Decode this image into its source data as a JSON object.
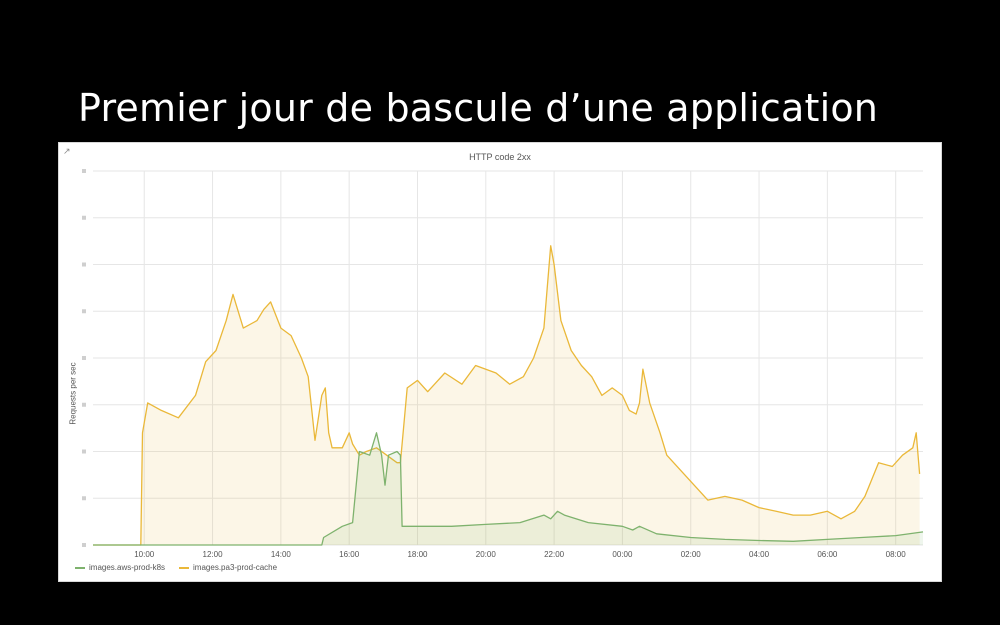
{
  "slide": {
    "title": "Premier jour de bascule d’une application"
  },
  "panel": {
    "link_icon": "external-link-icon",
    "title": "HTTP code 2xx"
  },
  "colors": {
    "background": "#000000",
    "panel": "#ffffff",
    "grid": "#e6e6e6",
    "series_cache": "#eab839",
    "series_k8s": "#7eb26d"
  },
  "chart_data": {
    "type": "area",
    "title": "HTTP code 2xx",
    "ylabel": "Requests per sec",
    "xlabel": "",
    "x_unit": "hours since 08:30 (axis wraps past midnight)",
    "x_ticks": [
      "10:00",
      "12:00",
      "14:00",
      "16:00",
      "18:00",
      "20:00",
      "22:00",
      "00:00",
      "02:00",
      "04:00",
      "06:00",
      "08:00"
    ],
    "y_tick_labels_legible": false,
    "y_relative_max": 100,
    "grid": true,
    "legend_position": "bottom-left",
    "series": [
      {
        "name": "images.aws-prod-k8s",
        "color": "#7eb26d",
        "points": [
          [
            0,
            0
          ],
          [
            6.7,
            0
          ],
          [
            6.75,
            2
          ],
          [
            7.3,
            5
          ],
          [
            7.6,
            6
          ],
          [
            7.8,
            25
          ],
          [
            8.1,
            24
          ],
          [
            8.3,
            30
          ],
          [
            8.45,
            24
          ],
          [
            8.55,
            16
          ],
          [
            8.65,
            24
          ],
          [
            8.9,
            25
          ],
          [
            9.0,
            24
          ],
          [
            9.05,
            5
          ],
          [
            9.5,
            5
          ],
          [
            10.5,
            5
          ],
          [
            11.5,
            5.5
          ],
          [
            12.5,
            6
          ],
          [
            13.2,
            8
          ],
          [
            13.4,
            7
          ],
          [
            13.6,
            9
          ],
          [
            13.8,
            8
          ],
          [
            14.5,
            6
          ],
          [
            15.5,
            5
          ],
          [
            15.8,
            4
          ],
          [
            16.0,
            5
          ],
          [
            16.5,
            3
          ],
          [
            17.5,
            2
          ],
          [
            18.5,
            1.5
          ],
          [
            19.5,
            1.2
          ],
          [
            20.5,
            1
          ],
          [
            21.5,
            1.5
          ],
          [
            22.5,
            2
          ],
          [
            23.5,
            2.5
          ],
          [
            24.3,
            3.5
          ]
        ]
      },
      {
        "name": "images.pa3-prod-cache",
        "color": "#eab839",
        "points": [
          [
            0,
            0
          ],
          [
            1.4,
            0
          ],
          [
            1.45,
            30
          ],
          [
            1.6,
            38
          ],
          [
            2.0,
            36
          ],
          [
            2.5,
            34
          ],
          [
            3.0,
            40
          ],
          [
            3.3,
            49
          ],
          [
            3.6,
            52
          ],
          [
            3.9,
            60
          ],
          [
            4.1,
            67
          ],
          [
            4.4,
            58
          ],
          [
            4.8,
            60
          ],
          [
            5.0,
            63
          ],
          [
            5.2,
            65
          ],
          [
            5.5,
            58
          ],
          [
            5.8,
            56
          ],
          [
            6.1,
            50
          ],
          [
            6.3,
            45
          ],
          [
            6.5,
            28
          ],
          [
            6.7,
            40
          ],
          [
            6.8,
            42
          ],
          [
            6.9,
            30
          ],
          [
            7.0,
            26
          ],
          [
            7.3,
            26
          ],
          [
            7.5,
            30
          ],
          [
            7.6,
            27
          ],
          [
            7.8,
            24
          ],
          [
            8.0,
            25
          ],
          [
            8.3,
            26
          ],
          [
            8.6,
            24
          ],
          [
            8.9,
            22
          ],
          [
            9.0,
            22
          ],
          [
            9.2,
            42
          ],
          [
            9.5,
            44
          ],
          [
            9.8,
            41
          ],
          [
            10.3,
            46
          ],
          [
            10.8,
            43
          ],
          [
            11.2,
            48
          ],
          [
            11.8,
            46
          ],
          [
            12.2,
            43
          ],
          [
            12.6,
            45
          ],
          [
            12.9,
            50
          ],
          [
            13.2,
            58
          ],
          [
            13.4,
            80
          ],
          [
            13.5,
            75
          ],
          [
            13.7,
            60
          ],
          [
            14.0,
            52
          ],
          [
            14.3,
            48
          ],
          [
            14.6,
            45
          ],
          [
            14.9,
            40
          ],
          [
            15.2,
            42
          ],
          [
            15.5,
            40
          ],
          [
            15.7,
            36
          ],
          [
            15.9,
            35
          ],
          [
            16.0,
            38
          ],
          [
            16.1,
            47
          ],
          [
            16.3,
            38
          ],
          [
            16.6,
            30
          ],
          [
            16.8,
            24
          ],
          [
            17.2,
            20
          ],
          [
            17.6,
            16
          ],
          [
            18.0,
            12
          ],
          [
            18.5,
            13
          ],
          [
            19.0,
            12
          ],
          [
            19.5,
            10
          ],
          [
            20.0,
            9
          ],
          [
            20.5,
            8
          ],
          [
            21.0,
            8
          ],
          [
            21.5,
            9
          ],
          [
            21.9,
            7
          ],
          [
            22.3,
            9
          ],
          [
            22.6,
            13
          ],
          [
            23.0,
            22
          ],
          [
            23.4,
            21
          ],
          [
            23.7,
            24
          ],
          [
            24.0,
            26
          ],
          [
            24.1,
            30
          ],
          [
            24.2,
            19
          ]
        ]
      }
    ]
  }
}
